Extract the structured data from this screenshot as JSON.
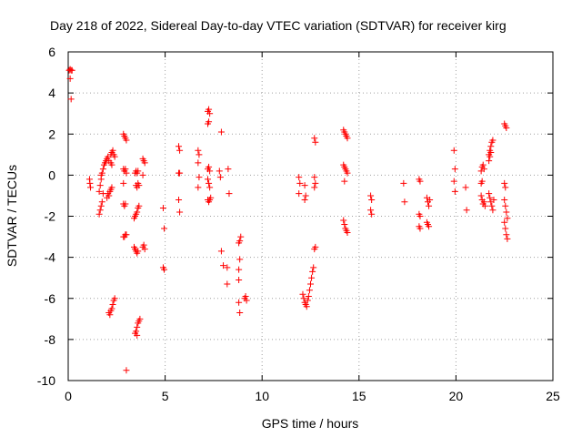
{
  "chart_data": {
    "type": "scatter",
    "title": "Day 218 of 2022, Sidereal Day-to-day VTEC variation (SDTVAR) for receiver kirg",
    "xlabel": "GPS time / hours",
    "ylabel": "SDTVAR / TECUs",
    "xlim": [
      0,
      25
    ],
    "ylim": [
      -10,
      6
    ],
    "x_ticks": [
      0,
      5,
      10,
      15,
      20,
      25
    ],
    "y_ticks": [
      -10,
      -8,
      -6,
      -4,
      -2,
      0,
      2,
      4,
      6
    ],
    "grid": true,
    "marker": "+",
    "color": "#ff0000",
    "series": [
      {
        "name": "SDTVAR",
        "points": [
          [
            0.05,
            5.1
          ],
          [
            0.1,
            5.15
          ],
          [
            0.15,
            5.1
          ],
          [
            0.2,
            5.1
          ],
          [
            0.1,
            4.7
          ],
          [
            0.15,
            3.7
          ],
          [
            1.1,
            -0.2
          ],
          [
            1.12,
            -0.4
          ],
          [
            1.15,
            -0.6
          ],
          [
            1.6,
            -1.9
          ],
          [
            1.65,
            -1.7
          ],
          [
            1.7,
            -1.5
          ],
          [
            1.75,
            -1.3
          ],
          [
            1.6,
            -0.8
          ],
          [
            1.65,
            -0.5
          ],
          [
            1.7,
            -0.2
          ],
          [
            1.75,
            0.1
          ],
          [
            1.8,
            0.3
          ],
          [
            1.85,
            0.5
          ],
          [
            1.9,
            0.6
          ],
          [
            1.95,
            0.7
          ],
          [
            1.7,
            0.0
          ],
          [
            1.8,
            -0.9
          ],
          [
            2.0,
            0.8
          ],
          [
            2.05,
            0.9
          ],
          [
            2.1,
            0.7
          ],
          [
            2.2,
            0.6
          ],
          [
            2.25,
            0.5
          ],
          [
            2.0,
            -1.1
          ],
          [
            2.05,
            -0.9
          ],
          [
            2.1,
            -1.0
          ],
          [
            2.15,
            -0.8
          ],
          [
            2.2,
            -0.7
          ],
          [
            2.25,
            -0.6
          ],
          [
            2.1,
            -6.7
          ],
          [
            2.15,
            -6.8
          ],
          [
            2.2,
            -6.6
          ],
          [
            2.25,
            -6.5
          ],
          [
            2.3,
            -6.3
          ],
          [
            2.35,
            -6.1
          ],
          [
            2.4,
            -6.0
          ],
          [
            2.2,
            1.0
          ],
          [
            2.25,
            1.1
          ],
          [
            2.3,
            1.2
          ],
          [
            2.35,
            1.0
          ],
          [
            2.4,
            0.9
          ],
          [
            2.85,
            2.0
          ],
          [
            2.9,
            1.9
          ],
          [
            2.95,
            1.8
          ],
          [
            3.0,
            1.7
          ],
          [
            2.85,
            0.3
          ],
          [
            2.9,
            0.2
          ],
          [
            2.95,
            0.3
          ],
          [
            3.0,
            0.1
          ],
          [
            2.85,
            -0.4
          ],
          [
            2.85,
            -1.4
          ],
          [
            2.9,
            -1.5
          ],
          [
            2.95,
            -1.4
          ],
          [
            2.85,
            -3.0
          ],
          [
            2.9,
            -3.0
          ],
          [
            2.95,
            -2.9
          ],
          [
            3.0,
            -2.9
          ],
          [
            3.0,
            -9.5
          ],
          [
            3.4,
            -2.1
          ],
          [
            3.45,
            -2.0
          ],
          [
            3.5,
            -1.9
          ],
          [
            3.55,
            -1.8
          ],
          [
            3.6,
            -1.6
          ],
          [
            3.65,
            -1.5
          ],
          [
            3.5,
            -0.5
          ],
          [
            3.55,
            -0.6
          ],
          [
            3.6,
            -0.4
          ],
          [
            3.65,
            -0.5
          ],
          [
            3.45,
            0.1
          ],
          [
            3.5,
            0.2
          ],
          [
            3.55,
            0.1
          ],
          [
            3.6,
            0.2
          ],
          [
            3.4,
            -3.5
          ],
          [
            3.45,
            -3.6
          ],
          [
            3.5,
            -3.7
          ],
          [
            3.55,
            -3.8
          ],
          [
            3.6,
            -3.7
          ],
          [
            3.9,
            -3.4
          ],
          [
            3.95,
            -3.6
          ],
          [
            3.85,
            -3.5
          ],
          [
            3.45,
            -7.7
          ],
          [
            3.5,
            -7.6
          ],
          [
            3.55,
            -7.4
          ],
          [
            3.6,
            -7.2
          ],
          [
            3.65,
            -7.1
          ],
          [
            3.7,
            -7.0
          ],
          [
            3.55,
            -7.8
          ],
          [
            3.85,
            0.8
          ],
          [
            3.9,
            0.7
          ],
          [
            3.95,
            0.6
          ],
          [
            3.85,
            0.0
          ],
          [
            4.9,
            -1.6
          ],
          [
            4.95,
            -2.6
          ],
          [
            4.9,
            -4.5
          ],
          [
            4.95,
            -4.6
          ],
          [
            5.7,
            1.4
          ],
          [
            5.75,
            1.2
          ],
          [
            5.7,
            0.1
          ],
          [
            5.75,
            0.1
          ],
          [
            5.7,
            -1.2
          ],
          [
            5.75,
            -1.8
          ],
          [
            6.7,
            1.2
          ],
          [
            6.75,
            1.0
          ],
          [
            6.7,
            0.6
          ],
          [
            6.75,
            -0.1
          ],
          [
            6.7,
            -0.6
          ],
          [
            7.2,
            3.1
          ],
          [
            7.25,
            3.2
          ],
          [
            7.3,
            3.0
          ],
          [
            7.2,
            2.5
          ],
          [
            7.25,
            2.6
          ],
          [
            7.2,
            0.3
          ],
          [
            7.25,
            0.4
          ],
          [
            7.3,
            0.2
          ],
          [
            7.2,
            -0.2
          ],
          [
            7.25,
            -0.4
          ],
          [
            7.3,
            -0.6
          ],
          [
            7.2,
            -1.2
          ],
          [
            7.25,
            -1.3
          ],
          [
            7.3,
            -1.2
          ],
          [
            7.35,
            -1.1
          ],
          [
            7.8,
            0.2
          ],
          [
            7.85,
            -0.1
          ],
          [
            7.9,
            2.1
          ],
          [
            7.9,
            -3.7
          ],
          [
            8.0,
            -4.4
          ],
          [
            8.2,
            -4.5
          ],
          [
            8.2,
            -5.3
          ],
          [
            8.25,
            0.3
          ],
          [
            8.3,
            -0.9
          ],
          [
            8.8,
            -3.3
          ],
          [
            8.85,
            -3.2
          ],
          [
            8.9,
            -3.0
          ],
          [
            8.8,
            -4.6
          ],
          [
            8.85,
            -4.1
          ],
          [
            8.8,
            -5.1
          ],
          [
            8.8,
            -6.2
          ],
          [
            8.85,
            -6.7
          ],
          [
            9.1,
            -6.0
          ],
          [
            9.15,
            -5.9
          ],
          [
            9.2,
            -6.1
          ],
          [
            11.9,
            -0.1
          ],
          [
            11.95,
            -0.4
          ],
          [
            11.9,
            -0.9
          ],
          [
            12.1,
            -5.8
          ],
          [
            12.15,
            -6.0
          ],
          [
            12.2,
            -6.2
          ],
          [
            12.25,
            -6.3
          ],
          [
            12.3,
            -6.4
          ],
          [
            12.35,
            -6.1
          ],
          [
            12.4,
            -5.9
          ],
          [
            12.45,
            -5.6
          ],
          [
            12.5,
            -5.3
          ],
          [
            12.55,
            -5.0
          ],
          [
            12.6,
            -4.7
          ],
          [
            12.65,
            -4.5
          ],
          [
            12.2,
            -1.2
          ],
          [
            12.25,
            -1.0
          ],
          [
            12.2,
            -0.5
          ],
          [
            12.7,
            1.8
          ],
          [
            12.75,
            1.6
          ],
          [
            12.7,
            -0.1
          ],
          [
            12.75,
            -0.4
          ],
          [
            12.7,
            -0.6
          ],
          [
            12.75,
            -3.5
          ],
          [
            12.7,
            -3.6
          ],
          [
            14.2,
            2.2
          ],
          [
            14.25,
            2.1
          ],
          [
            14.3,
            2.0
          ],
          [
            14.35,
            1.9
          ],
          [
            14.4,
            1.8
          ],
          [
            14.2,
            0.5
          ],
          [
            14.25,
            0.4
          ],
          [
            14.3,
            0.3
          ],
          [
            14.35,
            0.2
          ],
          [
            14.4,
            0.1
          ],
          [
            14.25,
            -0.3
          ],
          [
            14.2,
            -2.2
          ],
          [
            14.25,
            -2.4
          ],
          [
            14.3,
            -2.6
          ],
          [
            14.35,
            -2.7
          ],
          [
            14.4,
            -2.8
          ],
          [
            15.6,
            -1.0
          ],
          [
            15.65,
            -1.2
          ],
          [
            15.6,
            -1.7
          ],
          [
            15.65,
            -1.9
          ],
          [
            17.3,
            -0.4
          ],
          [
            17.35,
            -1.3
          ],
          [
            18.1,
            -0.2
          ],
          [
            18.15,
            -0.3
          ],
          [
            18.1,
            -1.9
          ],
          [
            18.15,
            -2.0
          ],
          [
            18.1,
            -2.5
          ],
          [
            18.15,
            -2.6
          ],
          [
            18.5,
            -1.1
          ],
          [
            18.55,
            -1.3
          ],
          [
            18.6,
            -1.5
          ],
          [
            18.65,
            -1.2
          ],
          [
            18.5,
            -2.3
          ],
          [
            18.55,
            -2.4
          ],
          [
            18.6,
            -2.5
          ],
          [
            19.9,
            1.2
          ],
          [
            19.95,
            0.3
          ],
          [
            19.9,
            -0.3
          ],
          [
            19.95,
            -0.8
          ],
          [
            20.5,
            -0.6
          ],
          [
            20.55,
            -1.7
          ],
          [
            21.3,
            0.2
          ],
          [
            21.35,
            0.4
          ],
          [
            21.4,
            0.5
          ],
          [
            21.45,
            0.3
          ],
          [
            21.3,
            -0.4
          ],
          [
            21.35,
            -0.3
          ],
          [
            21.3,
            -1.0
          ],
          [
            21.35,
            -1.2
          ],
          [
            21.4,
            -1.4
          ],
          [
            21.45,
            -1.3
          ],
          [
            21.5,
            -1.5
          ],
          [
            21.7,
            1.0
          ],
          [
            21.75,
            1.2
          ],
          [
            21.8,
            1.4
          ],
          [
            21.85,
            1.6
          ],
          [
            21.9,
            1.7
          ],
          [
            21.7,
            0.7
          ],
          [
            21.75,
            0.9
          ],
          [
            21.8,
            1.1
          ],
          [
            21.7,
            -0.9
          ],
          [
            21.75,
            -1.1
          ],
          [
            21.8,
            -1.3
          ],
          [
            21.85,
            -1.5
          ],
          [
            21.9,
            -1.7
          ],
          [
            21.95,
            -1.2
          ],
          [
            22.5,
            2.5
          ],
          [
            22.55,
            2.4
          ],
          [
            22.6,
            2.3
          ],
          [
            22.5,
            -0.4
          ],
          [
            22.55,
            -0.6
          ],
          [
            22.5,
            -1.2
          ],
          [
            22.55,
            -1.5
          ],
          [
            22.6,
            -1.8
          ],
          [
            22.65,
            -2.1
          ],
          [
            22.5,
            -2.3
          ],
          [
            22.55,
            -2.6
          ],
          [
            22.6,
            -2.9
          ],
          [
            22.65,
            -3.1
          ]
        ]
      }
    ]
  }
}
